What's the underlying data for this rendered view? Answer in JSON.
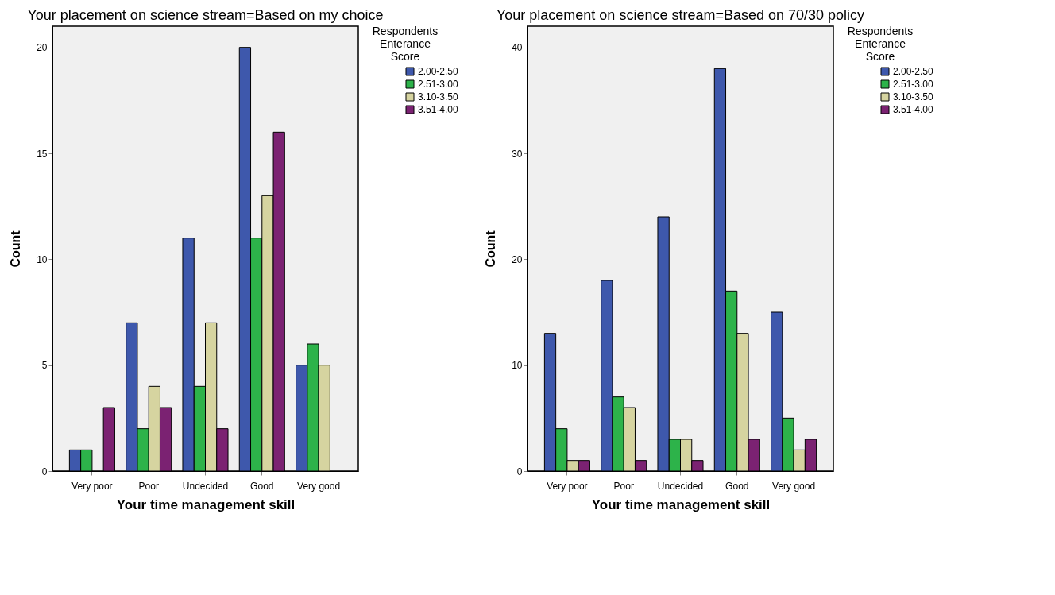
{
  "chart_data": [
    {
      "type": "bar",
      "title": "Your placement on science stream=Based on my choice",
      "xlabel": "Your time management skill",
      "ylabel": "Count",
      "legend_title": "Respondents Enterance Score",
      "legend": "top right",
      "grid": false,
      "categories": [
        "Very poor",
        "Poor",
        "Undecided",
        "Good",
        "Very good"
      ],
      "ylim": [
        0,
        21
      ],
      "yticks": [
        0,
        5,
        10,
        15,
        20
      ],
      "series": [
        {
          "name": "2.00-2.50",
          "color": "#3e58ac",
          "values": [
            1,
            7,
            11,
            20,
            5
          ]
        },
        {
          "name": "2.51-3.00",
          "color": "#2db34a",
          "values": [
            1,
            2,
            4,
            11,
            6
          ]
        },
        {
          "name": "3.10-3.50",
          "color": "#d6d4a0",
          "values": [
            null,
            4,
            7,
            13,
            5
          ]
        },
        {
          "name": "3.51-4.00",
          "color": "#7b2272",
          "values": [
            3,
            3,
            2,
            16,
            null
          ]
        }
      ]
    },
    {
      "type": "bar",
      "title": "Your placement on science stream=Based on 70/30 policy",
      "xlabel": "Your time management skill",
      "ylabel": "Count",
      "legend_title": "Respondents Enterance Score",
      "legend": "top right",
      "grid": false,
      "categories": [
        "Very poor",
        "Poor",
        "Undecided",
        "Good",
        "Very good"
      ],
      "ylim": [
        0,
        42
      ],
      "yticks": [
        0,
        10,
        20,
        30,
        40
      ],
      "series": [
        {
          "name": "2.00-2.50",
          "color": "#3e58ac",
          "values": [
            13,
            18,
            24,
            38,
            15
          ]
        },
        {
          "name": "2.51-3.00",
          "color": "#2db34a",
          "values": [
            4,
            7,
            3,
            17,
            5
          ]
        },
        {
          "name": "3.10-3.50",
          "color": "#d6d4a0",
          "values": [
            1,
            6,
            3,
            13,
            2
          ]
        },
        {
          "name": "3.51-4.00",
          "color": "#7b2272",
          "values": [
            1,
            1,
            1,
            3,
            3
          ]
        }
      ]
    }
  ]
}
